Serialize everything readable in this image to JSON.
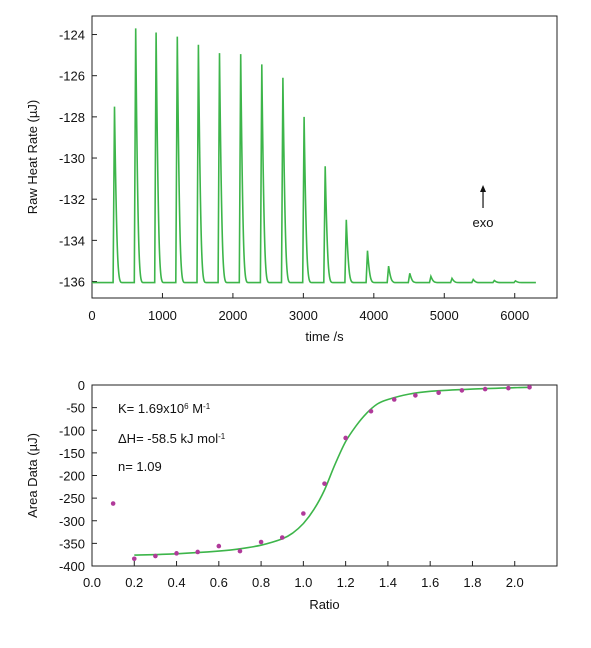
{
  "chart_data": [
    {
      "type": "line",
      "xlabel": "time /s",
      "ylabel": "Raw Heat Rate  (µJ)",
      "xlim": [
        0,
        6600
      ],
      "ylim": [
        -136.8,
        -123.1
      ],
      "x_ticks": [
        "0",
        "1000",
        "2000",
        "3000",
        "4000",
        "5000",
        "6000"
      ],
      "x_tick_values": [
        0,
        1000,
        2000,
        3000,
        4000,
        5000,
        6000
      ],
      "y_ticks": [
        "-124",
        "-126",
        "-128",
        "-130",
        "-132",
        "-134",
        "-136"
      ],
      "y_tick_values": [
        -124,
        -126,
        -128,
        -130,
        -132,
        -134,
        -136
      ],
      "baseline": -136.05,
      "trace_start": 0,
      "trace_end": 6300,
      "injection_peaks": {
        "x": [
          320,
          620,
          910,
          1210,
          1510,
          1810,
          2110,
          2410,
          2710,
          3010,
          3310,
          3610,
          3910,
          4210,
          4510,
          4810,
          5110,
          5410,
          5710,
          6010
        ],
        "y": [
          -127.5,
          -123.7,
          -123.9,
          -124.1,
          -124.5,
          -124.9,
          -124.95,
          -125.45,
          -126.1,
          -128.0,
          -130.4,
          -133.0,
          -134.5,
          -135.25,
          -135.6,
          -135.75,
          -135.85,
          -135.9,
          -135.95,
          -135.97
        ]
      },
      "annotation": {
        "text": "exo",
        "arrow": "up",
        "x": 5550
      },
      "color": "#3db54a"
    },
    {
      "type": "scatter",
      "xlabel": "Ratio",
      "ylabel": "Area Data (µJ)",
      "xlim": [
        0.0,
        2.2
      ],
      "ylim": [
        -400,
        0
      ],
      "x_ticks": [
        "0.0",
        "0.2",
        "0.4",
        "0.6",
        "0.8",
        "1.0",
        "1.2",
        "1.4",
        "1.6",
        "1.8",
        "2.0"
      ],
      "x_tick_values": [
        0.0,
        0.2,
        0.4,
        0.6,
        0.8,
        1.0,
        1.2,
        1.4,
        1.6,
        1.8,
        2.0
      ],
      "y_ticks": [
        "0",
        "-50",
        "-100",
        "-150",
        "-200",
        "-250",
        "-300",
        "-350",
        "-400"
      ],
      "y_tick_values": [
        0,
        -50,
        -100,
        -150,
        -200,
        -250,
        -300,
        -350,
        -400
      ],
      "points": {
        "x": [
          0.1,
          0.2,
          0.3,
          0.4,
          0.5,
          0.6,
          0.7,
          0.8,
          0.9,
          1.0,
          1.1,
          1.2,
          1.32,
          1.43,
          1.53,
          1.64,
          1.75,
          1.86,
          1.97,
          2.07
        ],
        "y": [
          -262,
          -384,
          -378,
          -372,
          -369,
          -356,
          -367,
          -347,
          -337,
          -284,
          -218,
          -117,
          -58,
          -32,
          -23,
          -17,
          -12,
          -9,
          -7,
          -5
        ]
      },
      "fit_curve": {
        "x": [
          0.2,
          0.4,
          0.6,
          0.7,
          0.8,
          0.9,
          0.95,
          1.0,
          1.05,
          1.1,
          1.15,
          1.2,
          1.25,
          1.3,
          1.35,
          1.4,
          1.5,
          1.6,
          1.8,
          2.0,
          2.07
        ],
        "y": [
          -376,
          -373,
          -367,
          -362,
          -354,
          -340,
          -327,
          -306,
          -275,
          -232,
          -175,
          -125,
          -90,
          -62,
          -42,
          -32,
          -20,
          -14,
          -9,
          -6,
          -5
        ]
      },
      "annotations": [
        {
          "parts": [
            [
              "K= 1.69x10",
              ""
            ],
            [
              "6",
              "sup"
            ],
            [
              " M",
              ""
            ],
            [
              "-1",
              "sup"
            ]
          ]
        },
        {
          "parts": [
            [
              "ΔH= -58.5 kJ mol",
              ""
            ],
            [
              "-1",
              "sup"
            ]
          ]
        },
        {
          "parts": [
            [
              "n= 1.09",
              ""
            ]
          ]
        }
      ],
      "point_color": "#b03a9a",
      "line_color": "#3db54a"
    }
  ]
}
